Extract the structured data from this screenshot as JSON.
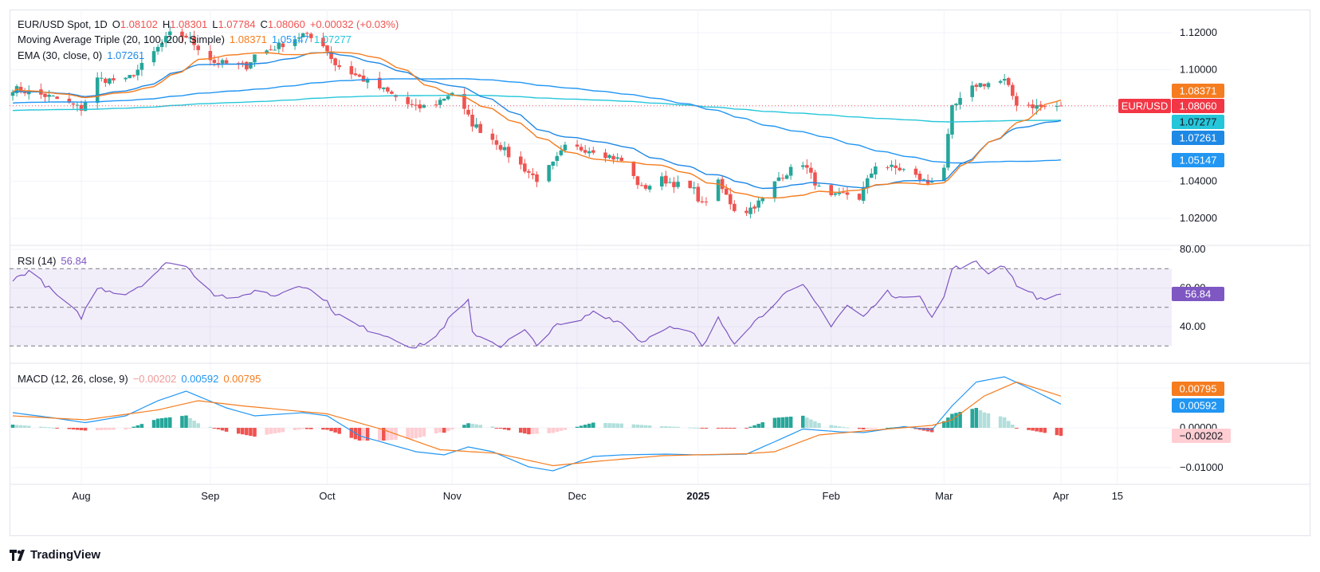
{
  "header": {
    "symbol": "EUR/USD Spot, 1D",
    "o_label": "O",
    "o": "1.08102",
    "h_label": "H",
    "h": "1.08301",
    "l_label": "L",
    "l": "1.07784",
    "c_label": "C",
    "c": "1.08060",
    "change": "+0.00032 (+0.03%)"
  },
  "legends": {
    "ma": {
      "name": "Moving Average Triple (20, 100, 200, Simple)",
      "v1": "1.08371",
      "v2": "1.05147",
      "v3": "1.07277"
    },
    "ema": {
      "name": "EMA (30, close, 0)",
      "v": "1.07261"
    },
    "rsi": {
      "name": "RSI (14)",
      "v": "56.84"
    },
    "macd": {
      "name": "MACD (12, 26, close, 9)",
      "hist": "−0.00202",
      "macd": "0.00592",
      "signal": "0.00795"
    }
  },
  "price_labels": {
    "ma20": "1.08371",
    "last": "1.08060",
    "pair": "EUR/USD",
    "ma200": "1.07277",
    "ema30": "1.07261",
    "ma100": "1.05147",
    "rsi": "56.84",
    "macd_signal": "0.00795",
    "macd": "0.00592",
    "macd_hist": "−0.00202"
  },
  "colors": {
    "up": "#26a69a",
    "down": "#ef5350",
    "ma20": "#f57c1f",
    "ma100": "#2196f3",
    "ma200": "#26c6da",
    "ema30": "#1e88e5",
    "rsi": "#7e57c2",
    "macd": "#2196f3",
    "signal": "#f57c1f",
    "hist_up_strong": "#26a69a",
    "hist_up_weak": "#b2dfdb",
    "hist_down_strong": "#ef5350",
    "hist_down_weak": "#ffcdd2"
  },
  "chart_data": [
    {
      "type": "candlestick",
      "title": "EUR/USD Spot, 1D",
      "y_ticks": [
        "1.12000",
        "1.10000",
        "1.04000",
        "1.02000"
      ],
      "ylim": [
        1.012,
        1.123
      ],
      "x_ticks": [
        "Aug",
        "Sep",
        "Oct",
        "Nov",
        "Dec",
        "2025",
        "Feb",
        "Mar",
        "Apr",
        "15"
      ],
      "x_tick_dates": [
        "2024-08-01",
        "2024-09-02",
        "2024-10-01",
        "2024-11-01",
        "2024-12-02",
        "2025-01-01",
        "2025-02-03",
        "2025-03-03",
        "2025-04-01",
        "2025-04-15"
      ],
      "close_keypoints": [
        [
          "2024-07-15",
          1.09
        ],
        [
          "2024-07-25",
          1.085
        ],
        [
          "2024-08-01",
          1.079
        ],
        [
          "2024-08-05",
          1.095
        ],
        [
          "2024-08-12",
          1.094
        ],
        [
          "2024-08-16",
          1.102
        ],
        [
          "2024-08-23",
          1.119
        ],
        [
          "2024-08-27",
          1.118
        ],
        [
          "2024-09-03",
          1.104
        ],
        [
          "2024-09-11",
          1.102
        ],
        [
          "2024-09-13",
          1.108
        ],
        [
          "2024-09-18",
          1.112
        ],
        [
          "2024-09-25",
          1.119
        ],
        [
          "2024-09-30",
          1.114
        ],
        [
          "2024-10-03",
          1.103
        ],
        [
          "2024-10-08",
          1.097
        ],
        [
          "2024-10-15",
          1.089
        ],
        [
          "2024-10-23",
          1.079
        ],
        [
          "2024-10-28",
          1.082
        ],
        [
          "2024-11-01",
          1.088
        ],
        [
          "2024-11-06",
          1.071
        ],
        [
          "2024-11-12",
          1.061
        ],
        [
          "2024-11-15",
          1.054
        ],
        [
          "2024-11-22",
          1.041
        ],
        [
          "2024-11-26",
          1.049
        ],
        [
          "2024-11-29",
          1.058
        ],
        [
          "2024-12-06",
          1.057
        ],
        [
          "2024-12-13",
          1.051
        ],
        [
          "2024-12-18",
          1.036
        ],
        [
          "2024-12-23",
          1.041
        ],
        [
          "2024-12-31",
          1.035
        ],
        [
          "2025-01-02",
          1.027
        ],
        [
          "2025-01-06",
          1.039
        ],
        [
          "2025-01-10",
          1.025
        ],
        [
          "2025-01-13",
          1.024
        ],
        [
          "2025-01-17",
          1.03
        ],
        [
          "2025-01-21",
          1.042
        ],
        [
          "2025-01-27",
          1.05
        ],
        [
          "2025-01-31",
          1.036
        ],
        [
          "2025-02-03",
          1.031
        ],
        [
          "2025-02-07",
          1.033
        ],
        [
          "2025-02-10",
          1.031
        ],
        [
          "2025-02-14",
          1.049
        ],
        [
          "2025-02-21",
          1.046
        ],
        [
          "2025-02-27",
          1.039
        ],
        [
          "2025-03-03",
          1.048
        ],
        [
          "2025-03-05",
          1.079
        ],
        [
          "2025-03-11",
          1.092
        ],
        [
          "2025-03-18",
          1.094
        ],
        [
          "2025-03-21",
          1.082
        ],
        [
          "2025-03-27",
          1.08
        ],
        [
          "2025-04-01",
          1.0806
        ]
      ],
      "series": [
        {
          "name": "MA 20",
          "last": 1.08371
        },
        {
          "name": "MA 100",
          "last": 1.05147
        },
        {
          "name": "MA 200",
          "last": 1.07277
        },
        {
          "name": "EMA 30",
          "last": 1.07261
        }
      ]
    },
    {
      "type": "line",
      "title": "RSI (14)",
      "y_ticks": [
        "80.00",
        "60.00",
        "40.00"
      ],
      "ylim": [
        20,
        81
      ],
      "bands": [
        30,
        50,
        70
      ],
      "values_keypoints": [
        [
          "2024-07-15",
          64
        ],
        [
          "2024-07-19",
          69
        ],
        [
          "2024-07-25",
          58
        ],
        [
          "2024-08-01",
          45
        ],
        [
          "2024-08-05",
          60
        ],
        [
          "2024-08-12",
          57
        ],
        [
          "2024-08-16",
          62
        ],
        [
          "2024-08-23",
          74
        ],
        [
          "2024-08-27",
          71
        ],
        [
          "2024-09-03",
          57
        ],
        [
          "2024-09-09",
          54
        ],
        [
          "2024-09-13",
          59
        ],
        [
          "2024-09-18",
          56
        ],
        [
          "2024-09-24",
          62
        ],
        [
          "2024-09-30",
          55
        ],
        [
          "2024-10-03",
          47
        ],
        [
          "2024-10-09",
          40
        ],
        [
          "2024-10-15",
          36
        ],
        [
          "2024-10-23",
          29
        ],
        [
          "2024-10-28",
          35
        ],
        [
          "2024-11-01",
          46
        ],
        [
          "2024-11-05",
          53
        ],
        [
          "2024-11-06",
          37
        ],
        [
          "2024-11-13",
          30
        ],
        [
          "2024-11-19",
          38
        ],
        [
          "2024-11-22",
          30
        ],
        [
          "2024-11-26",
          40
        ],
        [
          "2024-12-02",
          42
        ],
        [
          "2024-12-06",
          48
        ],
        [
          "2024-12-13",
          42
        ],
        [
          "2024-12-18",
          32
        ],
        [
          "2024-12-24",
          40
        ],
        [
          "2024-12-31",
          36
        ],
        [
          "2025-01-02",
          29
        ],
        [
          "2025-01-06",
          44
        ],
        [
          "2025-01-10",
          32
        ],
        [
          "2025-01-14",
          41
        ],
        [
          "2025-01-17",
          46
        ],
        [
          "2025-01-21",
          55
        ],
        [
          "2025-01-27",
          61
        ],
        [
          "2025-01-31",
          50
        ],
        [
          "2025-02-03",
          41
        ],
        [
          "2025-02-07",
          51
        ],
        [
          "2025-02-11",
          45
        ],
        [
          "2025-02-17",
          58
        ],
        [
          "2025-02-21",
          54
        ],
        [
          "2025-02-25",
          57
        ],
        [
          "2025-02-28",
          45
        ],
        [
          "2025-03-03",
          55
        ],
        [
          "2025-03-05",
          70
        ],
        [
          "2025-03-11",
          73
        ],
        [
          "2025-03-14",
          68
        ],
        [
          "2025-03-18",
          72
        ],
        [
          "2025-03-21",
          62
        ],
        [
          "2025-03-27",
          54
        ],
        [
          "2025-04-01",
          56.84
        ]
      ]
    },
    {
      "type": "bar+line",
      "title": "MACD (12, 26, close, 9)",
      "y_ticks": [
        "0.00000",
        "−0.01000"
      ],
      "ylim": [
        -0.0125,
        0.016
      ],
      "macd_keypoints": [
        [
          "2024-07-15",
          0.0038
        ],
        [
          "2024-07-25",
          0.0025
        ],
        [
          "2024-08-02",
          0.0013
        ],
        [
          "2024-08-12",
          0.003
        ],
        [
          "2024-08-20",
          0.0068
        ],
        [
          "2024-08-27",
          0.0092
        ],
        [
          "2024-09-06",
          0.005
        ],
        [
          "2024-09-13",
          0.003
        ],
        [
          "2024-09-25",
          0.0038
        ],
        [
          "2024-10-01",
          0.003
        ],
        [
          "2024-10-09",
          -0.002
        ],
        [
          "2024-10-23",
          -0.006
        ],
        [
          "2024-10-30",
          -0.0068
        ],
        [
          "2024-11-05",
          -0.0048
        ],
        [
          "2024-11-11",
          -0.006
        ],
        [
          "2024-11-20",
          -0.0098
        ],
        [
          "2024-11-26",
          -0.0108
        ],
        [
          "2024-12-06",
          -0.0072
        ],
        [
          "2024-12-13",
          -0.0068
        ],
        [
          "2024-12-24",
          -0.0066
        ],
        [
          "2025-01-02",
          -0.0068
        ],
        [
          "2025-01-13",
          -0.0066
        ],
        [
          "2025-01-20",
          -0.0035
        ],
        [
          "2025-01-27",
          -0.0003
        ],
        [
          "2025-02-05",
          -0.001
        ],
        [
          "2025-02-11",
          -0.0012
        ],
        [
          "2025-02-21",
          0.0003
        ],
        [
          "2025-02-28",
          -0.0005
        ],
        [
          "2025-03-05",
          0.0055
        ],
        [
          "2025-03-11",
          0.0115
        ],
        [
          "2025-03-18",
          0.0128
        ],
        [
          "2025-03-25",
          0.0095
        ],
        [
          "2025-04-01",
          0.00592
        ]
      ],
      "signal_keypoints": [
        [
          "2024-07-15",
          0.003
        ],
        [
          "2024-08-02",
          0.002
        ],
        [
          "2024-08-20",
          0.0045
        ],
        [
          "2024-08-30",
          0.0068
        ],
        [
          "2024-09-10",
          0.0055
        ],
        [
          "2024-10-01",
          0.0035
        ],
        [
          "2024-10-15",
          -0.0005
        ],
        [
          "2024-10-29",
          -0.0055
        ],
        [
          "2024-11-12",
          -0.0064
        ],
        [
          "2024-11-26",
          -0.0095
        ],
        [
          "2024-12-06",
          -0.0085
        ],
        [
          "2024-12-23",
          -0.007
        ],
        [
          "2025-01-13",
          -0.0065
        ],
        [
          "2025-01-20",
          -0.006
        ],
        [
          "2025-01-31",
          -0.0018
        ],
        [
          "2025-02-11",
          -0.0008
        ],
        [
          "2025-02-28",
          0.0006
        ],
        [
          "2025-03-05",
          0.002
        ],
        [
          "2025-03-13",
          0.008
        ],
        [
          "2025-03-21",
          0.0115
        ],
        [
          "2025-04-01",
          0.00795
        ]
      ],
      "hist_last": -0.00202
    }
  ]
}
